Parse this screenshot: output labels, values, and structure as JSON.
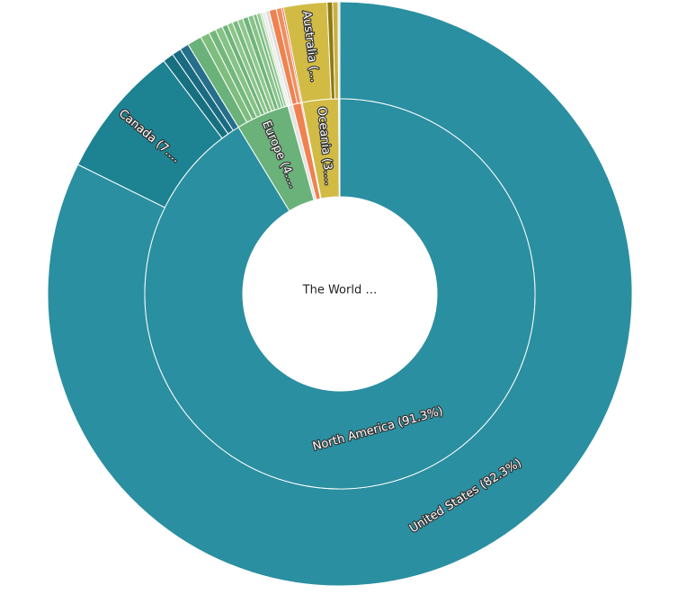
{
  "chart_data": {
    "type": "sunburst",
    "center_label": "The World …",
    "data": [
      {
        "label": "North America (91.3%)",
        "value": 91.3,
        "color": "#2a8fa0",
        "children": [
          {
            "label": "United States (82.3%)",
            "value": 82.3,
            "color": "#2a8fa0"
          },
          {
            "label": "Canada (7.…",
            "value": 7.4,
            "color": "#1d8291"
          },
          {
            "label": null,
            "value": 0.6,
            "color": "#17707f"
          },
          {
            "label": null,
            "value": 0.5,
            "color": "#1a6b82"
          },
          {
            "label": null,
            "value": 0.5,
            "color": "#256f8a"
          }
        ]
      },
      {
        "label": "Europe (4.…",
        "value": 4.4,
        "color": "#6ab27a",
        "children": [
          {
            "label": null,
            "value": 0.8,
            "color": "#6ab27a"
          },
          {
            "label": null,
            "value": 0.5,
            "color": "#7fbd7f"
          },
          {
            "label": null,
            "value": 0.4,
            "color": "#74b77c"
          },
          {
            "label": null,
            "value": 0.4,
            "color": "#86c286"
          },
          {
            "label": null,
            "value": 0.3,
            "color": "#6fb47b"
          },
          {
            "label": null,
            "value": 0.3,
            "color": "#8cc58a"
          },
          {
            "label": null,
            "value": 0.3,
            "color": "#79ba80"
          },
          {
            "label": null,
            "value": 0.3,
            "color": "#90c78d"
          },
          {
            "label": null,
            "value": 0.3,
            "color": "#70b57b"
          },
          {
            "label": null,
            "value": 0.3,
            "color": "#88c389"
          },
          {
            "label": null,
            "value": 0.2,
            "color": "#7cbb81"
          },
          {
            "label": null,
            "value": 0.2,
            "color": "#94c991"
          },
          {
            "label": null,
            "value": 0.1,
            "color": "#a6d3a0"
          }
        ]
      },
      {
        "label": null,
        "value": 0.4,
        "color": "#e3e3e3",
        "children": [
          {
            "label": null,
            "value": 0.2,
            "color": "#ececec"
          },
          {
            "label": null,
            "value": 0.2,
            "color": "#dcdcdc"
          }
        ]
      },
      {
        "label": null,
        "value": 0.7,
        "color": "#ef8250",
        "children": [
          {
            "label": null,
            "value": 0.4,
            "color": "#ef8250"
          },
          {
            "label": null,
            "value": 0.3,
            "color": "#f08f5e"
          }
        ]
      },
      {
        "label": null,
        "value": 0.1,
        "color": "#e55a4a",
        "children": [
          {
            "label": null,
            "value": 0.1,
            "color": "#e55a4a"
          }
        ]
      },
      {
        "label": "Oceania (3.…",
        "value": 3.0,
        "color": "#d2bb45",
        "children": [
          {
            "label": "Australia (…",
            "value": 2.4,
            "color": "#d2bb45"
          },
          {
            "label": null,
            "value": 0.3,
            "color": "#8e7b10"
          },
          {
            "label": null,
            "value": 0.3,
            "color": "#c9b040"
          }
        ]
      },
      {
        "label": null,
        "value": 0.1,
        "color": "#d9d9d9",
        "children": [
          {
            "label": null,
            "value": 0.1,
            "color": "#d9d9d9"
          }
        ]
      }
    ]
  }
}
